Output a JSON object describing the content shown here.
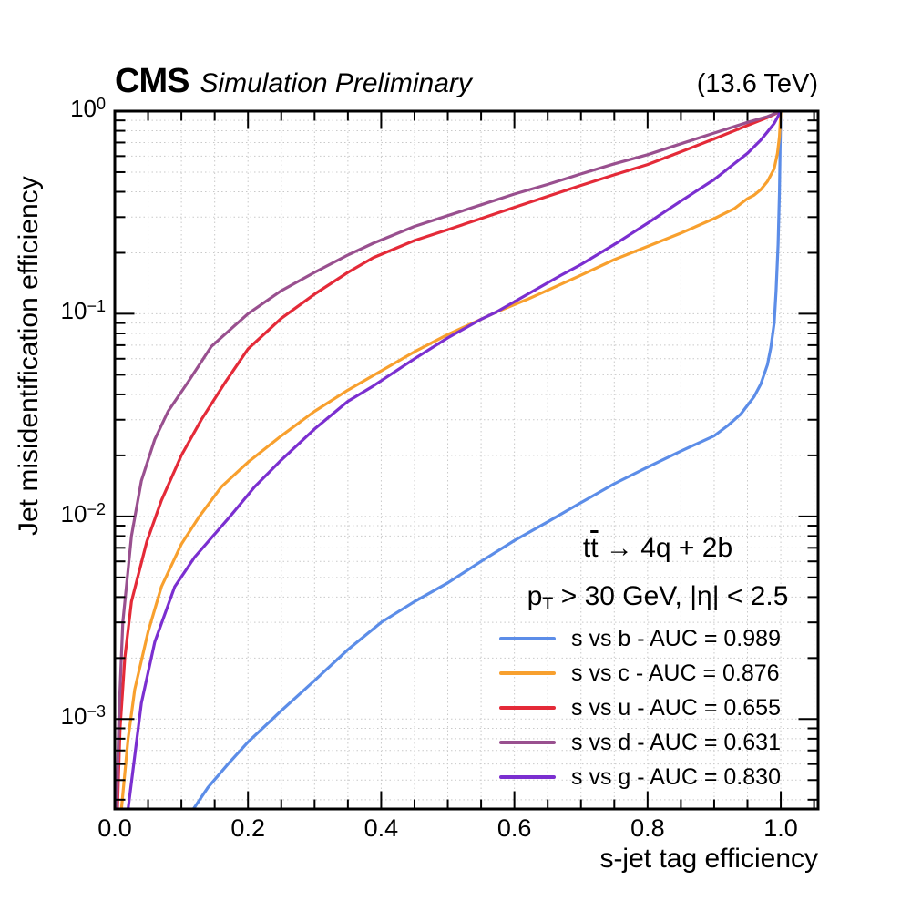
{
  "header": {
    "experiment": "CMS",
    "sublabel": "Simulation Preliminary",
    "energy": "(13.6 TeV)"
  },
  "legend": {
    "process": {
      "t1": "t",
      "t2": "t",
      "rest": " → 4q + 2b"
    },
    "selection": {
      "p": "p",
      "sub": "T",
      "rest": " > 30 GeV, |η| < 2.5"
    }
  },
  "chart_data": {
    "type": "line",
    "title": "",
    "xlabel": "s-jet tag efficiency",
    "ylabel": "Jet misidentification efficiency",
    "xscale": "linear",
    "yscale": "log",
    "xlim": [
      0,
      1.056
    ],
    "ylim": [
      0.00036,
      1.0
    ],
    "grid": true,
    "grid_style": "dotted",
    "grid_color": "#c9c9c9",
    "axis_color": "#000000",
    "legend_position": "lower right",
    "xticks": {
      "major": [
        0.0,
        0.2,
        0.4,
        0.6,
        0.8,
        1.0
      ],
      "labels": [
        "0.0",
        "0.2",
        "0.4",
        "0.6",
        "0.8",
        "1.0"
      ],
      "minor_step": 0.05
    },
    "yticks": {
      "major": [
        1,
        0.1,
        0.01,
        0.001
      ],
      "labels_base": "10",
      "labels_exp": [
        "0",
        "−1",
        "−2",
        "−3"
      ]
    },
    "series": [
      {
        "name": "s vs b",
        "auc": 0.989,
        "label": "s vs b - AUC = 0.989",
        "color": "#5c8de8",
        "points": [
          [
            0.118,
            0.00036
          ],
          [
            0.14,
            0.00046
          ],
          [
            0.17,
            0.0006
          ],
          [
            0.2,
            0.00077
          ],
          [
            0.25,
            0.0011
          ],
          [
            0.3,
            0.00155
          ],
          [
            0.35,
            0.0022
          ],
          [
            0.4,
            0.003
          ],
          [
            0.45,
            0.0038
          ],
          [
            0.5,
            0.0047
          ],
          [
            0.55,
            0.006
          ],
          [
            0.6,
            0.0076
          ],
          [
            0.65,
            0.0094
          ],
          [
            0.7,
            0.0117
          ],
          [
            0.75,
            0.0145
          ],
          [
            0.8,
            0.0175
          ],
          [
            0.85,
            0.021
          ],
          [
            0.9,
            0.025
          ],
          [
            0.92,
            0.028
          ],
          [
            0.94,
            0.032
          ],
          [
            0.96,
            0.039
          ],
          [
            0.97,
            0.045
          ],
          [
            0.98,
            0.056
          ],
          [
            0.985,
            0.068
          ],
          [
            0.99,
            0.09
          ],
          [
            0.993,
            0.13
          ],
          [
            0.996,
            0.22
          ],
          [
            0.998,
            0.4
          ],
          [
            0.999,
            0.65
          ],
          [
            1.0,
            1.0
          ]
        ]
      },
      {
        "name": "s vs c",
        "auc": 0.876,
        "label": "s vs c - AUC = 0.876",
        "color": "#f8a02e",
        "points": [
          [
            0.01,
            0.00036
          ],
          [
            0.02,
            0.0008
          ],
          [
            0.03,
            0.0014
          ],
          [
            0.05,
            0.0027
          ],
          [
            0.07,
            0.0045
          ],
          [
            0.1,
            0.0073
          ],
          [
            0.127,
            0.01
          ],
          [
            0.16,
            0.014
          ],
          [
            0.2,
            0.0185
          ],
          [
            0.25,
            0.025
          ],
          [
            0.3,
            0.033
          ],
          [
            0.35,
            0.042
          ],
          [
            0.39,
            0.05
          ],
          [
            0.45,
            0.065
          ],
          [
            0.5,
            0.079
          ],
          [
            0.55,
            0.094
          ],
          [
            0.573,
            0.102
          ],
          [
            0.62,
            0.118
          ],
          [
            0.7,
            0.155
          ],
          [
            0.75,
            0.185
          ],
          [
            0.8,
            0.215
          ],
          [
            0.85,
            0.25
          ],
          [
            0.9,
            0.295
          ],
          [
            0.93,
            0.33
          ],
          [
            0.95,
            0.37
          ],
          [
            0.96,
            0.385
          ],
          [
            0.97,
            0.41
          ],
          [
            0.98,
            0.45
          ],
          [
            0.99,
            0.52
          ],
          [
            0.995,
            0.62
          ],
          [
            0.998,
            0.75
          ],
          [
            1.0,
            1.0
          ]
        ]
      },
      {
        "name": "s vs u",
        "auc": 0.655,
        "label": "s vs u - AUC = 0.655",
        "color": "#e42a38",
        "points": [
          [
            0.004,
            0.00036
          ],
          [
            0.008,
            0.0009
          ],
          [
            0.015,
            0.002
          ],
          [
            0.025,
            0.0038
          ],
          [
            0.048,
            0.0075
          ],
          [
            0.07,
            0.012
          ],
          [
            0.1,
            0.02
          ],
          [
            0.13,
            0.03
          ],
          [
            0.166,
            0.046
          ],
          [
            0.2,
            0.067
          ],
          [
            0.25,
            0.095
          ],
          [
            0.3,
            0.125
          ],
          [
            0.35,
            0.16
          ],
          [
            0.388,
            0.189
          ],
          [
            0.45,
            0.23
          ],
          [
            0.5,
            0.26
          ],
          [
            0.55,
            0.295
          ],
          [
            0.6,
            0.335
          ],
          [
            0.65,
            0.38
          ],
          [
            0.7,
            0.43
          ],
          [
            0.75,
            0.485
          ],
          [
            0.8,
            0.545
          ],
          [
            0.85,
            0.63
          ],
          [
            0.9,
            0.73
          ],
          [
            0.95,
            0.85
          ],
          [
            0.98,
            0.93
          ],
          [
            1.0,
            1.0
          ]
        ]
      },
      {
        "name": "s vs d",
        "auc": 0.631,
        "label": "s vs d - AUC = 0.631",
        "color": "#99508f",
        "points": [
          [
            0.003,
            0.00036
          ],
          [
            0.006,
            0.001
          ],
          [
            0.012,
            0.003
          ],
          [
            0.025,
            0.008
          ],
          [
            0.04,
            0.015
          ],
          [
            0.06,
            0.024
          ],
          [
            0.08,
            0.033
          ],
          [
            0.11,
            0.046
          ],
          [
            0.145,
            0.069
          ],
          [
            0.2,
            0.1
          ],
          [
            0.25,
            0.13
          ],
          [
            0.3,
            0.16
          ],
          [
            0.35,
            0.195
          ],
          [
            0.388,
            0.223
          ],
          [
            0.45,
            0.27
          ],
          [
            0.5,
            0.305
          ],
          [
            0.55,
            0.345
          ],
          [
            0.6,
            0.39
          ],
          [
            0.65,
            0.435
          ],
          [
            0.7,
            0.49
          ],
          [
            0.75,
            0.55
          ],
          [
            0.8,
            0.61
          ],
          [
            0.85,
            0.69
          ],
          [
            0.9,
            0.78
          ],
          [
            0.95,
            0.88
          ],
          [
            0.98,
            0.94
          ],
          [
            1.0,
            1.0
          ]
        ]
      },
      {
        "name": "s vs g",
        "auc": 0.83,
        "label": "s vs g - AUC = 0.830",
        "color": "#7b2fd0",
        "points": [
          [
            0.02,
            0.00036
          ],
          [
            0.04,
            0.0012
          ],
          [
            0.06,
            0.0024
          ],
          [
            0.09,
            0.0045
          ],
          [
            0.12,
            0.0063
          ],
          [
            0.173,
            0.01
          ],
          [
            0.21,
            0.014
          ],
          [
            0.25,
            0.019
          ],
          [
            0.3,
            0.027
          ],
          [
            0.35,
            0.037
          ],
          [
            0.388,
            0.044
          ],
          [
            0.45,
            0.06
          ],
          [
            0.5,
            0.076
          ],
          [
            0.55,
            0.094
          ],
          [
            0.573,
            0.102
          ],
          [
            0.62,
            0.125
          ],
          [
            0.67,
            0.155
          ],
          [
            0.7,
            0.175
          ],
          [
            0.757,
            0.227
          ],
          [
            0.8,
            0.28
          ],
          [
            0.85,
            0.36
          ],
          [
            0.9,
            0.46
          ],
          [
            0.93,
            0.55
          ],
          [
            0.95,
            0.62
          ],
          [
            0.97,
            0.72
          ],
          [
            0.98,
            0.79
          ],
          [
            0.99,
            0.87
          ],
          [
            1.0,
            1.0
          ]
        ]
      }
    ]
  }
}
